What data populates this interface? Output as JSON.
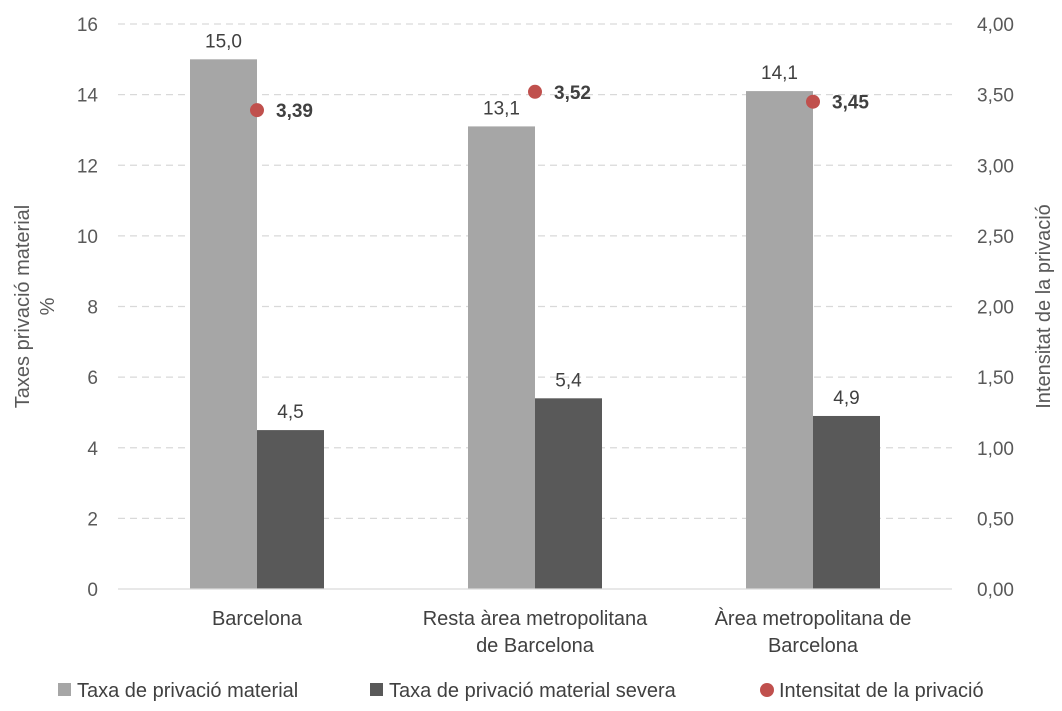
{
  "chart_data": {
    "type": "bar",
    "categories": [
      [
        "Barcelona"
      ],
      [
        "Resta àrea metropolitana",
        "de Barcelona"
      ],
      [
        "Àrea metropolitana de",
        "Barcelona"
      ]
    ],
    "series": [
      {
        "name": "Taxa de privació material",
        "kind": "bar",
        "axis": "left",
        "color": "#a6a6a6",
        "values": [
          15.0,
          13.1,
          14.1
        ],
        "labels": [
          "15,0",
          "13,1",
          "14,1"
        ]
      },
      {
        "name": "Taxa de privació material severa",
        "kind": "bar",
        "axis": "left",
        "color": "#595959",
        "values": [
          4.5,
          5.4,
          4.9
        ],
        "labels": [
          "4,5",
          "5,4",
          "4,9"
        ]
      },
      {
        "name": "Intensitat de la privació",
        "kind": "point",
        "axis": "right",
        "color": "#c0504d",
        "values": [
          3.39,
          3.52,
          3.45
        ],
        "labels": [
          "3,39",
          "3,52",
          "3,45"
        ]
      }
    ],
    "ylabel": [
      "Taxes privació material",
      "%"
    ],
    "y2label": "Intensitat de la privació",
    "ylim": [
      0,
      16
    ],
    "y2lim": [
      0,
      4
    ],
    "yticks": [
      "0",
      "2",
      "4",
      "6",
      "8",
      "10",
      "12",
      "14",
      "16"
    ],
    "y2ticks": [
      "0,00",
      "0,50",
      "1,00",
      "1,50",
      "2,00",
      "2,50",
      "3,00",
      "3,50",
      "4,00"
    ],
    "grid": true,
    "legend_position": "bottom"
  }
}
